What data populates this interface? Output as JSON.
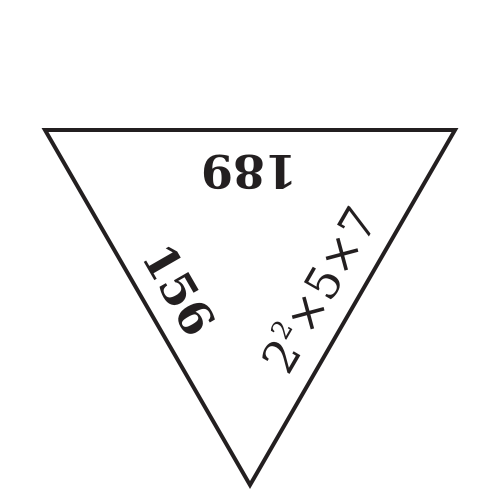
{
  "puzzle": {
    "edges": {
      "top": "189",
      "left": "156",
      "right": {
        "base": "2",
        "exponent": "2",
        "rest": "×5×7"
      }
    },
    "stroke_color": "#231f20",
    "background_color": "#ffffff"
  }
}
